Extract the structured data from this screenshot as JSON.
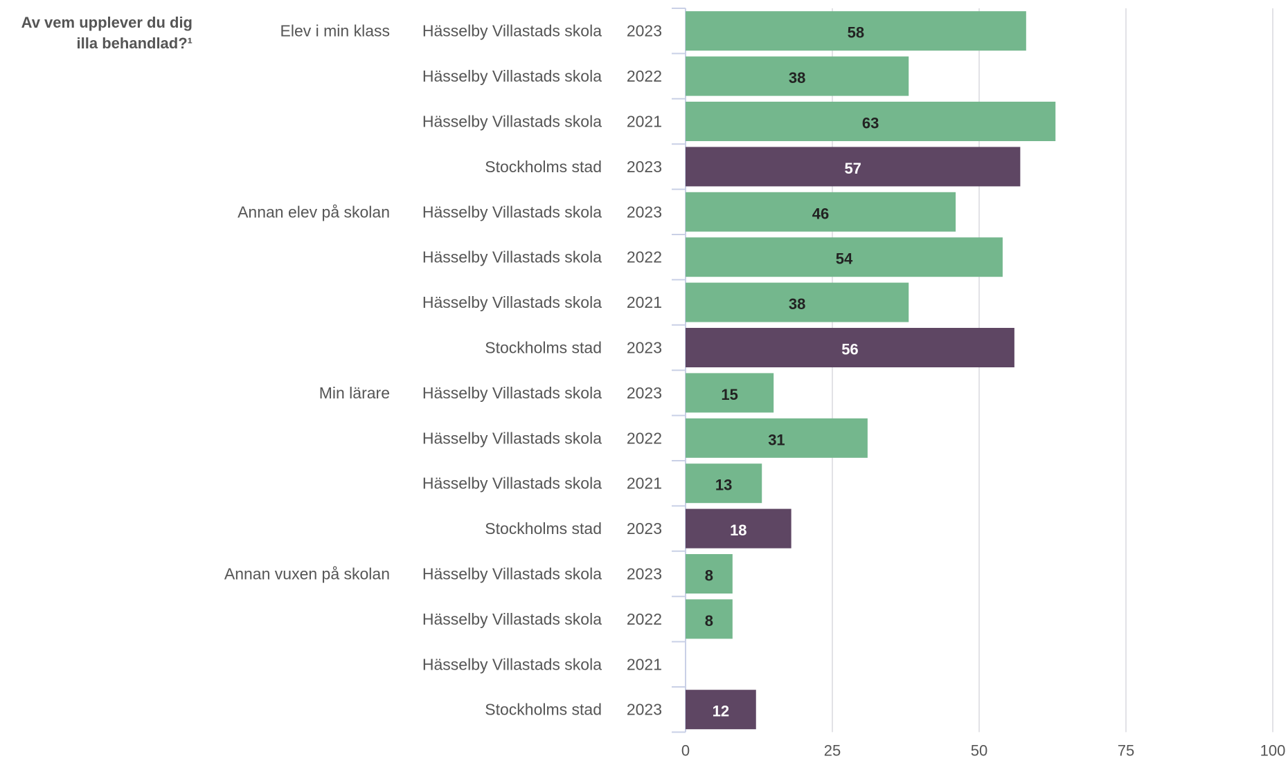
{
  "chart_data": {
    "type": "bar",
    "orientation": "horizontal",
    "title_lines": [
      "Av vem upplever du dig",
      "illa behandlad?¹"
    ],
    "xlim": [
      0,
      100
    ],
    "xticks": [
      0,
      25,
      50,
      75,
      100
    ],
    "grid": true,
    "colors": {
      "Hässelby Villastads skola": "#74b78d",
      "Stockholms stad": "#5e4663"
    },
    "label_colors": {
      "Hässelby Villastads skola": "#222222",
      "Stockholms stad": "#ffffff"
    },
    "groups": [
      {
        "label": "Elev i min klass",
        "rows": [
          {
            "entity": "Hässelby Villastads skola",
            "year": "2023",
            "value": 58
          },
          {
            "entity": "Hässelby Villastads skola",
            "year": "2022",
            "value": 38
          },
          {
            "entity": "Hässelby Villastads skola",
            "year": "2021",
            "value": 63
          },
          {
            "entity": "Stockholms stad",
            "year": "2023",
            "value": 57
          }
        ]
      },
      {
        "label": "Annan elev på skolan",
        "rows": [
          {
            "entity": "Hässelby Villastads skola",
            "year": "2023",
            "value": 46
          },
          {
            "entity": "Hässelby Villastads skola",
            "year": "2022",
            "value": 54
          },
          {
            "entity": "Hässelby Villastads skola",
            "year": "2021",
            "value": 38
          },
          {
            "entity": "Stockholms stad",
            "year": "2023",
            "value": 56
          }
        ]
      },
      {
        "label": "Min lärare",
        "rows": [
          {
            "entity": "Hässelby Villastads skola",
            "year": "2023",
            "value": 15
          },
          {
            "entity": "Hässelby Villastads skola",
            "year": "2022",
            "value": 31
          },
          {
            "entity": "Hässelby Villastads skola",
            "year": "2021",
            "value": 13
          },
          {
            "entity": "Stockholms stad",
            "year": "2023",
            "value": 18
          }
        ]
      },
      {
        "label": "Annan vuxen på skolan",
        "rows": [
          {
            "entity": "Hässelby Villastads skola",
            "year": "2023",
            "value": 8
          },
          {
            "entity": "Hässelby Villastads skola",
            "year": "2022",
            "value": 8
          },
          {
            "entity": "Hässelby Villastads skola",
            "year": "2021",
            "value": null
          },
          {
            "entity": "Stockholms stad",
            "year": "2023",
            "value": 12
          }
        ]
      }
    ]
  }
}
